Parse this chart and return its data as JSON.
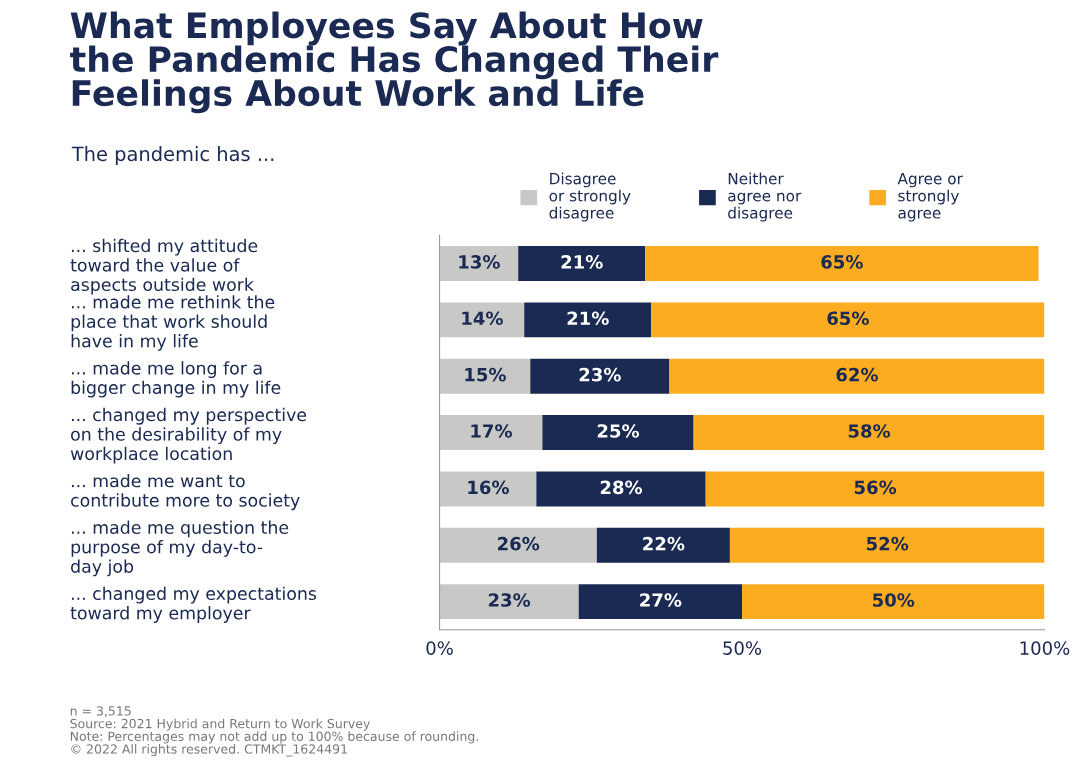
{
  "chart_data": {
    "type": "bar",
    "orientation": "horizontal",
    "stacked": true,
    "title": "What Employees Say About How\nthe Pandemic Has Changed Their\nFeelings About Work and Life",
    "subtitle": "The pandemic has ...",
    "categories": [
      "... shifted my attitude\ntoward the value of\naspects outside work",
      "... made me rethink the\nplace that work should\nhave in my life",
      "... made me long for a\nbigger change in my life",
      "... changed my perspective\non the desirability of my\nworkplace location",
      "... made me want to\ncontribute more to society",
      "... made me question the\npurpose of my day-to-\nday job",
      "... changed my expectations\ntoward my employer"
    ],
    "series": [
      {
        "name": "Disagree\nor strongly\ndisagree",
        "color": "#c8c9c7",
        "values": [
          13,
          14,
          15,
          17,
          16,
          26,
          23
        ],
        "value_labels": [
          "13%",
          "14%",
          "15%",
          "17%",
          "16%",
          "26%",
          "23%"
        ]
      },
      {
        "name": "Neither\nagree nor\ndisagree",
        "color": "#1b2a52",
        "values": [
          21,
          21,
          23,
          25,
          28,
          22,
          27
        ],
        "value_labels": [
          "21%",
          "21%",
          "23%",
          "25%",
          "28%",
          "22%",
          "27%"
        ]
      },
      {
        "name": "Agree or\nstrongly\nagree",
        "color": "#fbac20",
        "values": [
          65,
          65,
          62,
          58,
          56,
          52,
          50
        ],
        "value_labels": [
          "65%",
          "65%",
          "62%",
          "58%",
          "56%",
          "52%",
          "50%"
        ]
      }
    ],
    "xlim": [
      0,
      100
    ],
    "xticks": [
      {
        "value": 0,
        "label": "0%"
      },
      {
        "value": 50,
        "label": "50%"
      },
      {
        "value": 100,
        "label": "100%"
      }
    ],
    "legend": "top",
    "grid": false,
    "annotations": [
      "n = 3,515",
      "Source: 2021 Hybrid and Return to Work Survey",
      "Note: Percentages may not add up to 100% because of rounding.",
      "© 2022 All rights reserved. CTMKT_1624491"
    ]
  }
}
